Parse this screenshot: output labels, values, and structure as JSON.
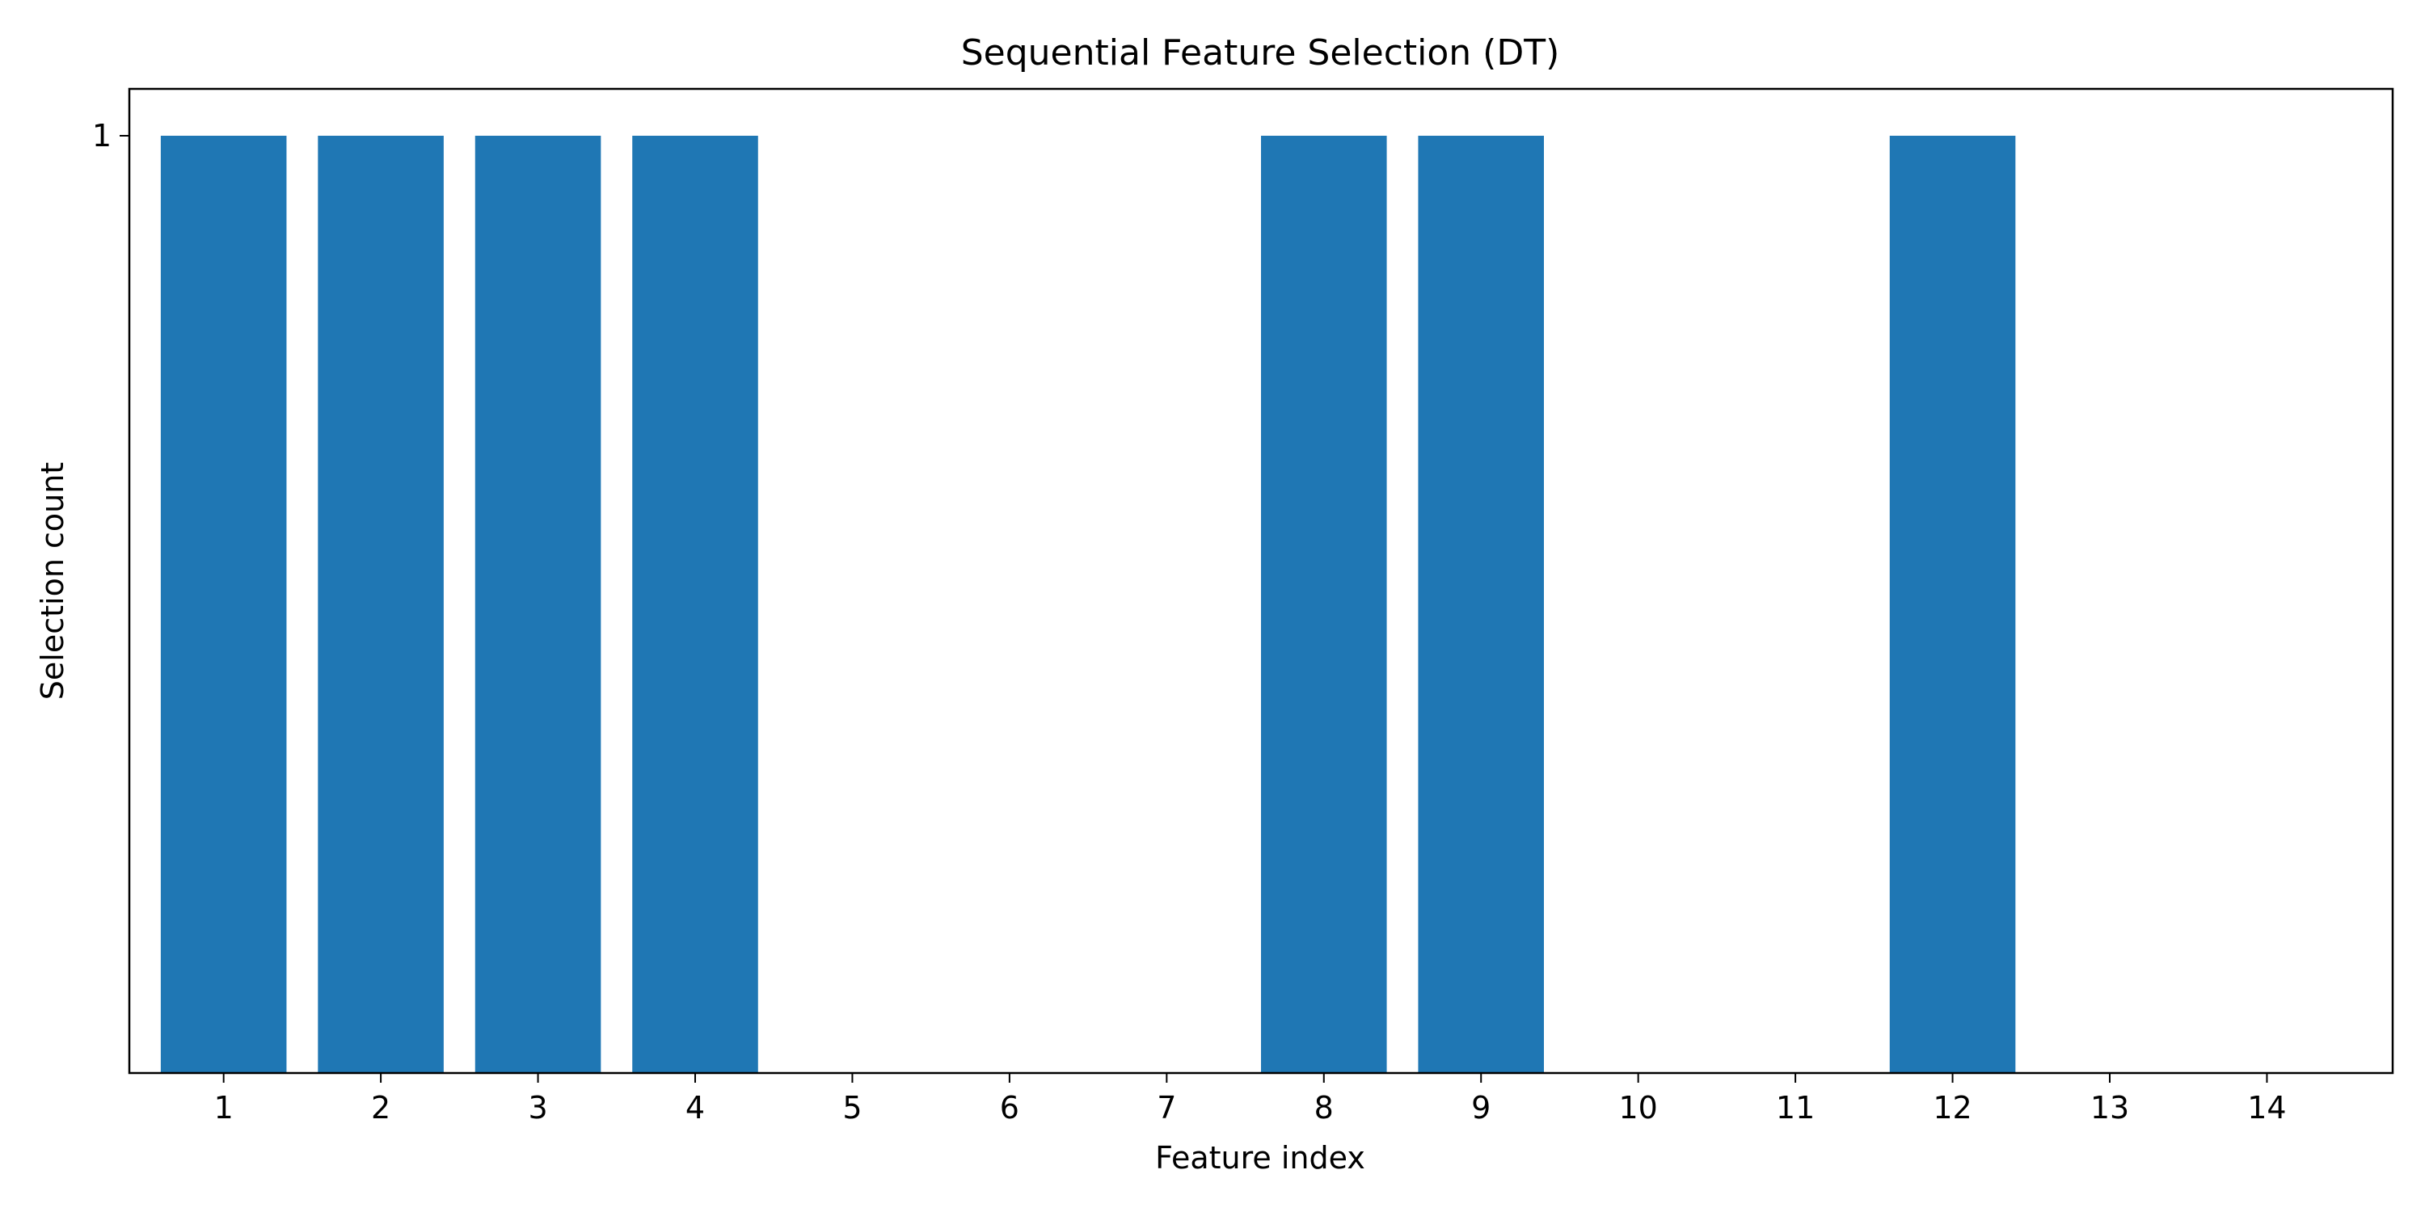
{
  "chart_data": {
    "type": "bar",
    "title": "Sequential Feature Selection (DT)",
    "xlabel": "Feature index",
    "ylabel": "Selection count",
    "categories": [
      "1",
      "2",
      "3",
      "4",
      "5",
      "6",
      "7",
      "8",
      "9",
      "10",
      "11",
      "12",
      "13",
      "14"
    ],
    "values": [
      1,
      1,
      1,
      1,
      0,
      0,
      0,
      1,
      1,
      0,
      0,
      1,
      0,
      0
    ],
    "yticks": [
      "1"
    ],
    "ylim": [
      0,
      1.05
    ],
    "grid": false,
    "bar_color": "#1f77b4"
  }
}
